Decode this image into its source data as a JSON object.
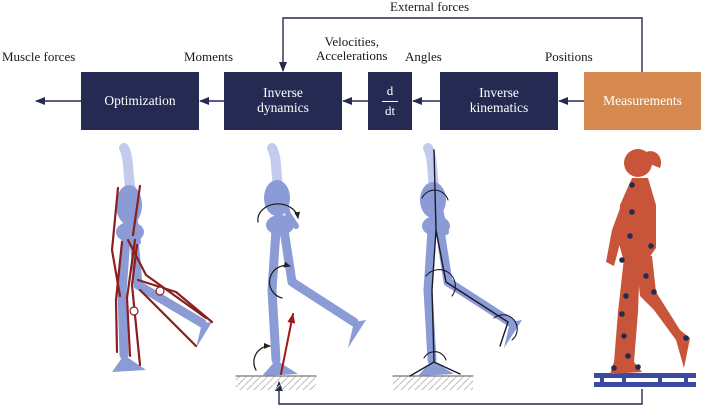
{
  "labels": {
    "external_forces": "External forces",
    "muscle_forces": "Muscle forces",
    "moments": "Moments",
    "velocities": "Velocities,",
    "accelerations": "Accelerations",
    "angles": "Angles",
    "positions": "Positions"
  },
  "boxes": {
    "optimization": "Optimization",
    "inverse_dynamics": [
      "Inverse",
      "dynamics"
    ],
    "derivative": [
      "d",
      "dt"
    ],
    "inverse_kinematics": [
      "Inverse",
      "kinematics"
    ],
    "measurements": "Measurements"
  },
  "colors": {
    "box_dark": "#252a52",
    "box_orange": "#d68a4f",
    "arrow": "#252a52",
    "skeleton": "#8b9bd6",
    "muscle": "#8a1f1f",
    "body": "#c8553a",
    "marker": "#252a52",
    "platform": "#3b4a9e"
  }
}
